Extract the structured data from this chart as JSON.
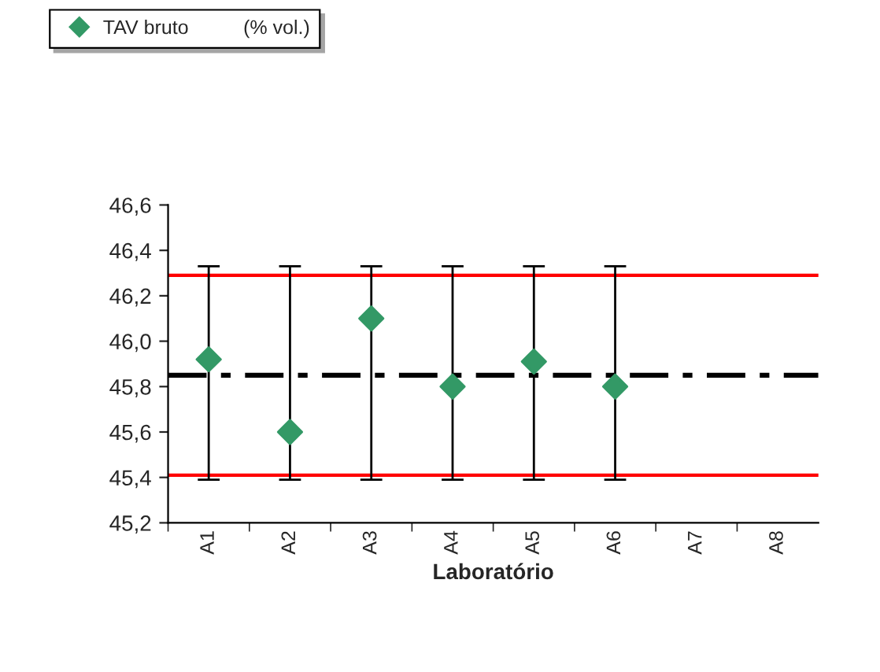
{
  "chart_data": {
    "type": "scatter",
    "xlabel": "Laboratório",
    "categories": [
      "A1",
      "A2",
      "A3",
      "A4",
      "A5",
      "A6",
      "A7",
      "A8"
    ],
    "series": [
      {
        "name": "TAV bruto          (% vol.)",
        "color": "#339966",
        "values": [
          45.92,
          45.6,
          46.1,
          45.8,
          45.91,
          45.8,
          null,
          null
        ],
        "errors": [
          [
            45.39,
            46.33
          ],
          [
            45.39,
            46.33
          ],
          [
            45.39,
            46.33
          ],
          [
            45.39,
            46.33
          ],
          [
            45.39,
            46.33
          ],
          [
            45.39,
            46.33
          ],
          null,
          null
        ]
      }
    ],
    "ylim": [
      45.2,
      46.6
    ],
    "yticks": [
      {
        "value": 45.2,
        "label": "45,2"
      },
      {
        "value": 45.4,
        "label": "45,4"
      },
      {
        "value": 45.6,
        "label": "45,6"
      },
      {
        "value": 45.8,
        "label": "45,8"
      },
      {
        "value": 46.0,
        "label": "46,0"
      },
      {
        "value": 46.2,
        "label": "46,2"
      },
      {
        "value": 46.4,
        "label": "46,4"
      },
      {
        "value": 46.6,
        "label": "46,6"
      }
    ],
    "ref_lines": [
      {
        "axis": "y",
        "value": 46.29,
        "color": "#ff0000",
        "line_style": "solid"
      },
      {
        "axis": "y",
        "value": 45.41,
        "color": "#ff0000",
        "line_style": "solid"
      },
      {
        "axis": "y",
        "value": 45.85,
        "color": "#000000",
        "line_style": "dashdot"
      }
    ],
    "marker": "diamond",
    "grid": false,
    "legend": "top"
  }
}
